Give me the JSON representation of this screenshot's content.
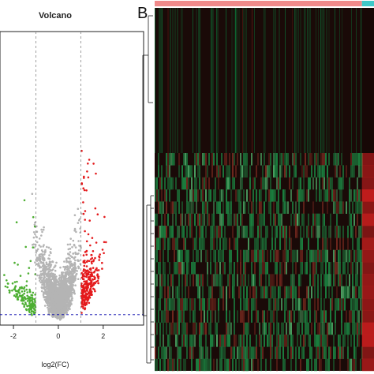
{
  "panels": {
    "a_title": "Volcano",
    "b_label": "B"
  },
  "chart_data": [
    {
      "type": "scatter",
      "title": "Volcano",
      "xlabel": "log2(FC)",
      "ylabel": "",
      "xlim": [
        -2.6,
        3.8
      ],
      "x_ticks": [
        -2,
        0,
        2
      ],
      "x_tick_labels": [
        "-2",
        "0",
        "2"
      ],
      "fc_thresholds": [
        -1,
        1
      ],
      "grid": false,
      "legend": "none",
      "colors": {
        "up": "#e41a1c",
        "down": "#4daf32",
        "ns": "#b4b4b4",
        "threshold": "#0000aa"
      },
      "series": [
        {
          "group": "up",
          "approx_count": 300
        },
        {
          "group": "down",
          "approx_count": 170
        },
        {
          "group": "ns",
          "approx_count": 2000
        }
      ]
    },
    {
      "type": "heatmap",
      "column_groups": [
        {
          "group": "control",
          "fraction": 0.945,
          "color": "#f08a8a"
        },
        {
          "group": "tumor",
          "fraction": 0.055,
          "color": "#3fc8c8"
        }
      ],
      "row_blocks": [
        {
          "fraction": 0.4,
          "pattern": "low-expression"
        },
        {
          "fraction": 0.6,
          "pattern": "mixed-high"
        }
      ],
      "colors": {
        "low": "#00a64a",
        "mid": "#1a0a08",
        "high": "#c81e1e"
      },
      "has_row_dendrogram": true
    }
  ]
}
